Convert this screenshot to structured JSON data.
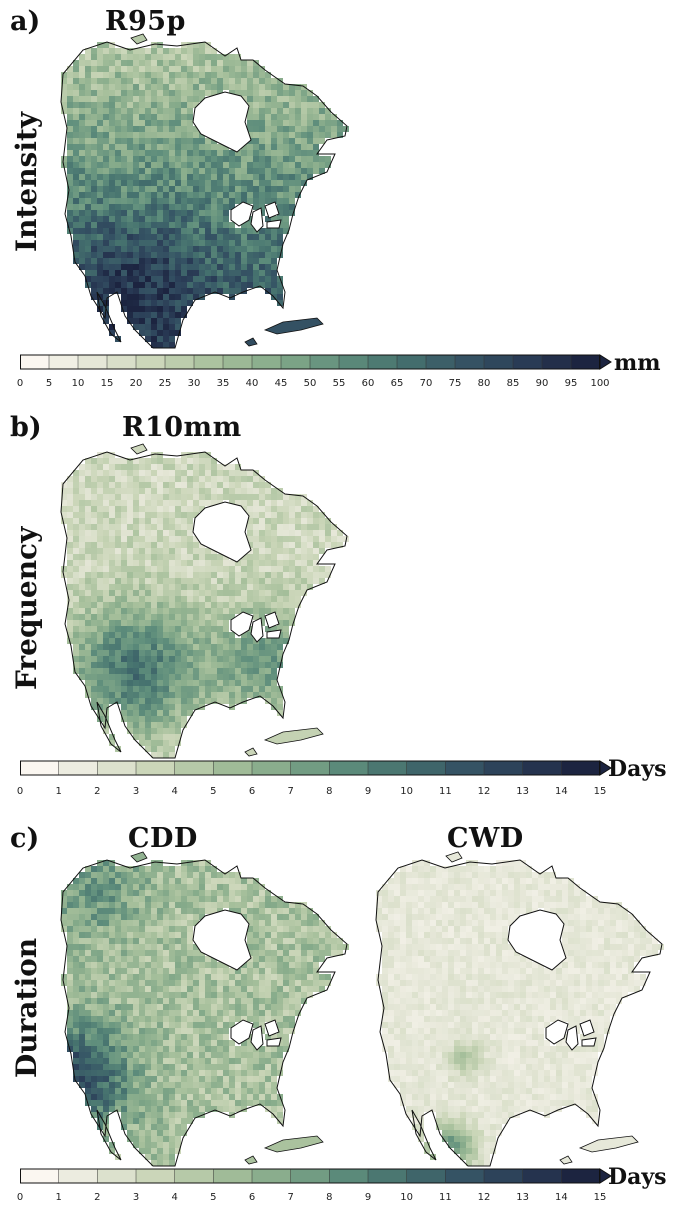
{
  "panels": [
    {
      "letter": "a)",
      "title": "R95p",
      "row_label": "Intensity"
    },
    {
      "letter": "b)",
      "title": "R10mm",
      "row_label": "Frequency"
    },
    {
      "letter": "c)",
      "titles": [
        "CDD",
        "CWD"
      ],
      "row_label": "Duration"
    }
  ],
  "colorbars": [
    {
      "unit": "mm",
      "ticks": [
        "0",
        "5",
        "10",
        "15",
        "20",
        "25",
        "30",
        "35",
        "40",
        "45",
        "50",
        "55",
        "60",
        "65",
        "70",
        "75",
        "80",
        "85",
        "90",
        "95",
        "100"
      ]
    },
    {
      "unit": "Days",
      "ticks": [
        "0",
        "1",
        "2",
        "3",
        "4",
        "5",
        "6",
        "7",
        "8",
        "9",
        "10",
        "11",
        "12",
        "13",
        "14",
        "15"
      ]
    },
    {
      "unit": "Days",
      "ticks": [
        "0",
        "1",
        "2",
        "3",
        "4",
        "5",
        "6",
        "7",
        "8",
        "9",
        "10",
        "11",
        "12",
        "13",
        "14",
        "15"
      ]
    }
  ],
  "colors": {
    "ramp": [
      "#fbf7f1",
      "#e4e6d6",
      "#c9d5b7",
      "#a7c09c",
      "#85aa8a",
      "#5f8e7c",
      "#45716e",
      "#365565",
      "#2a3c56",
      "#1c2440"
    ],
    "land_outline": "#111111",
    "water": "#ffffff"
  }
}
